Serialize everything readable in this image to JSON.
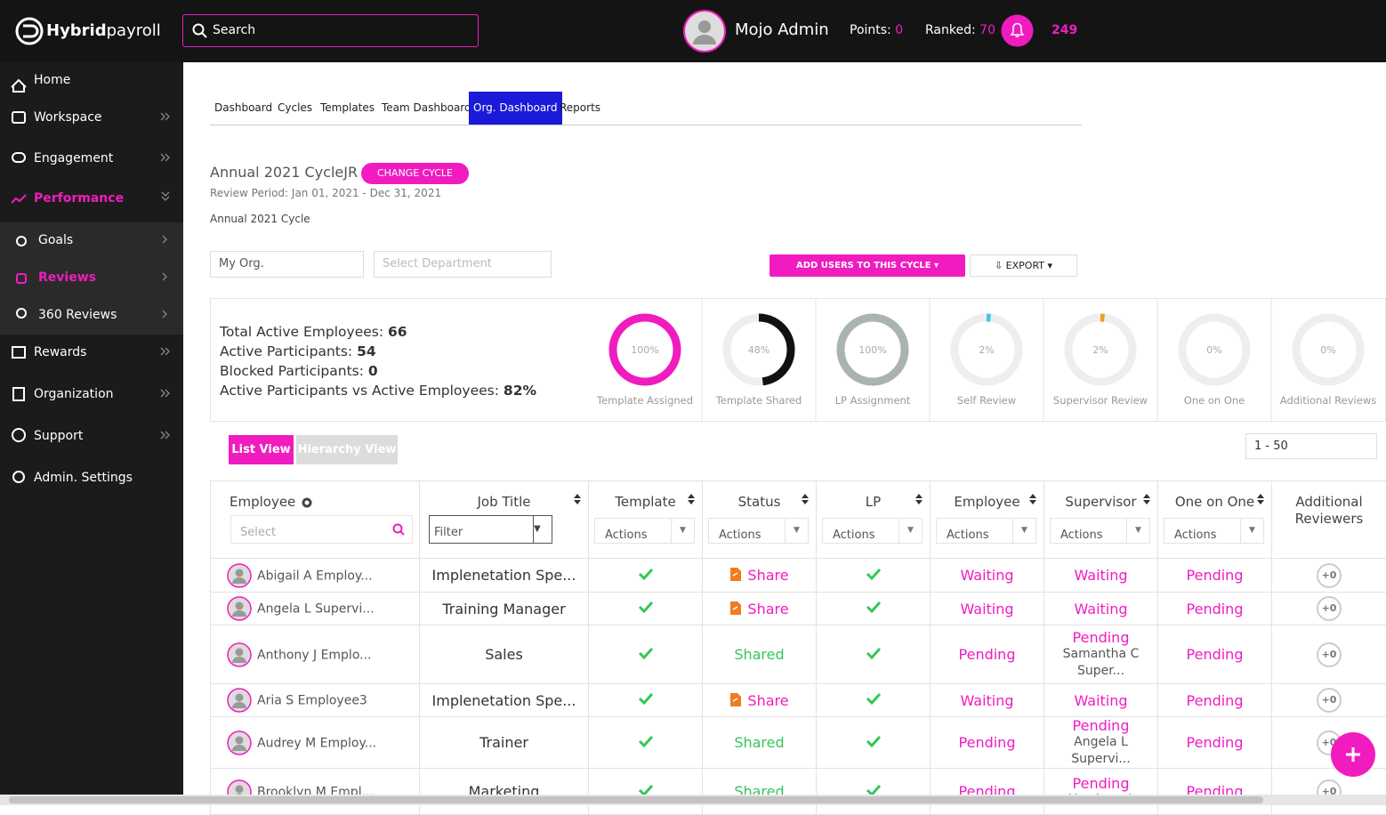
{
  "header": {
    "logo_bold": "Hybrid",
    "logo_light": "payroll",
    "search": "Search",
    "user": "Mojo Admin",
    "points_label": "Points:",
    "points": "0",
    "ranked_label": "Ranked:",
    "ranked": "70",
    "notifications": "249"
  },
  "sidebar": {
    "home": "Home",
    "workspace": "Workspace",
    "engagement": "Engagement",
    "performance": "Performance",
    "goals": "Goals",
    "reviews": "Reviews",
    "reviews_360": "360 Reviews",
    "rewards": "Rewards",
    "organization": "Organization",
    "support": "Support",
    "admin": "Admin. Settings"
  },
  "tabs": [
    "Dashboard",
    "Cycles",
    "Templates",
    "Team Dashboard",
    "Org. Dashboard",
    "Reports"
  ],
  "cycle": {
    "title": "Annual 2021 CycleJR",
    "change": "CHANGE CYCLE",
    "period": "Review Period: Jan 01, 2021 - Dec 31, 2021",
    "name": "Annual 2021 Cycle"
  },
  "filters": {
    "org": "My Org.",
    "department": "Select Department",
    "add_users": "ADD USERS TO THIS CYCLE",
    "export": "EXPORT"
  },
  "stats": [
    {
      "label": "Total Active Employees:",
      "value": "66"
    },
    {
      "label": "Active Participants:",
      "value": "54"
    },
    {
      "label": "Blocked Participants:",
      "value": "0"
    },
    {
      "label": "Active Participants vs Active Employees:",
      "value": "82%"
    }
  ],
  "rings": [
    {
      "value": 100,
      "label": "100%",
      "caption": "Template Assigned",
      "color": "#f01cc0"
    },
    {
      "value": 48,
      "label": "48%",
      "caption": "Template Shared",
      "color": "#111111"
    },
    {
      "value": 100,
      "label": "100%",
      "caption": "LP Assignment",
      "color": "#a9b3b1"
    },
    {
      "value": 2,
      "label": "2%",
      "caption": "Self Review",
      "color": "#3cc8e8"
    },
    {
      "value": 2,
      "label": "2%",
      "caption": "Supervisor Review",
      "color": "#f0a020"
    },
    {
      "value": 0,
      "label": "0%",
      "caption": "One on One",
      "color": "#cccccc"
    },
    {
      "value": 0,
      "label": "0%",
      "caption": "Additional Reviews",
      "color": "#cccccc"
    }
  ],
  "view": {
    "list": "List View",
    "hierarchy": "Hierarchy View",
    "pager": "1 - 50"
  },
  "table": {
    "columns": [
      "Employee",
      "Job Title",
      "Template",
      "Status",
      "LP",
      "Employee",
      "Supervisor",
      "One on One",
      "Additional Reviewers"
    ],
    "employee_placeholder": "Select",
    "job_placeholder": "Filter",
    "actions": [
      "Actions",
      "Actions",
      "Actions",
      "Actions",
      "Actions",
      "Actions"
    ],
    "rows": [
      {
        "name": "Abigail A Employ...",
        "job": "Implenetation Spe...",
        "status": {
          "text": "Share",
          "color": "#f01cc0"
        },
        "employee": "Waiting",
        "supervisor": {
          "text": "Waiting"
        },
        "one": "Pending",
        "additional": "+0"
      },
      {
        "name": "Angela L Supervi...",
        "job": "Training Manager",
        "status": {
          "text": "Share",
          "color": "#f01cc0"
        },
        "employee": "Waiting",
        "supervisor": {
          "text": "Waiting"
        },
        "one": "Pending",
        "additional": "+0"
      },
      {
        "name": "Anthony J Emplo...",
        "job": "Sales",
        "status": {
          "text": "Shared",
          "color": "#34c759"
        },
        "employee": "Pending",
        "supervisor": {
          "text": "Pending",
          "sub": "Samantha C Super..."
        },
        "one": "Pending",
        "additional": "+0"
      },
      {
        "name": "Aria S Employee3",
        "job": "Implenetation Spe...",
        "status": {
          "text": "Share",
          "color": "#f01cc0"
        },
        "employee": "Waiting",
        "supervisor": {
          "text": "Waiting"
        },
        "one": "Pending",
        "additional": "+0"
      },
      {
        "name": "Audrey M Employ...",
        "job": "Trainer",
        "status": {
          "text": "Shared",
          "color": "#34c759"
        },
        "employee": "Pending",
        "supervisor": {
          "text": "Pending",
          "sub": "Angela L Supervi..."
        },
        "one": "Pending",
        "additional": "+0"
      },
      {
        "name": "Brooklyn M Empl...",
        "job": "Marketing",
        "status": {
          "text": "Shared",
          "color": "#34c759"
        },
        "employee": "Pending",
        "supervisor": {
          "text": "Pending",
          "sub": "Matthew A"
        },
        "one": "Pending",
        "additional": "+0"
      }
    ]
  }
}
